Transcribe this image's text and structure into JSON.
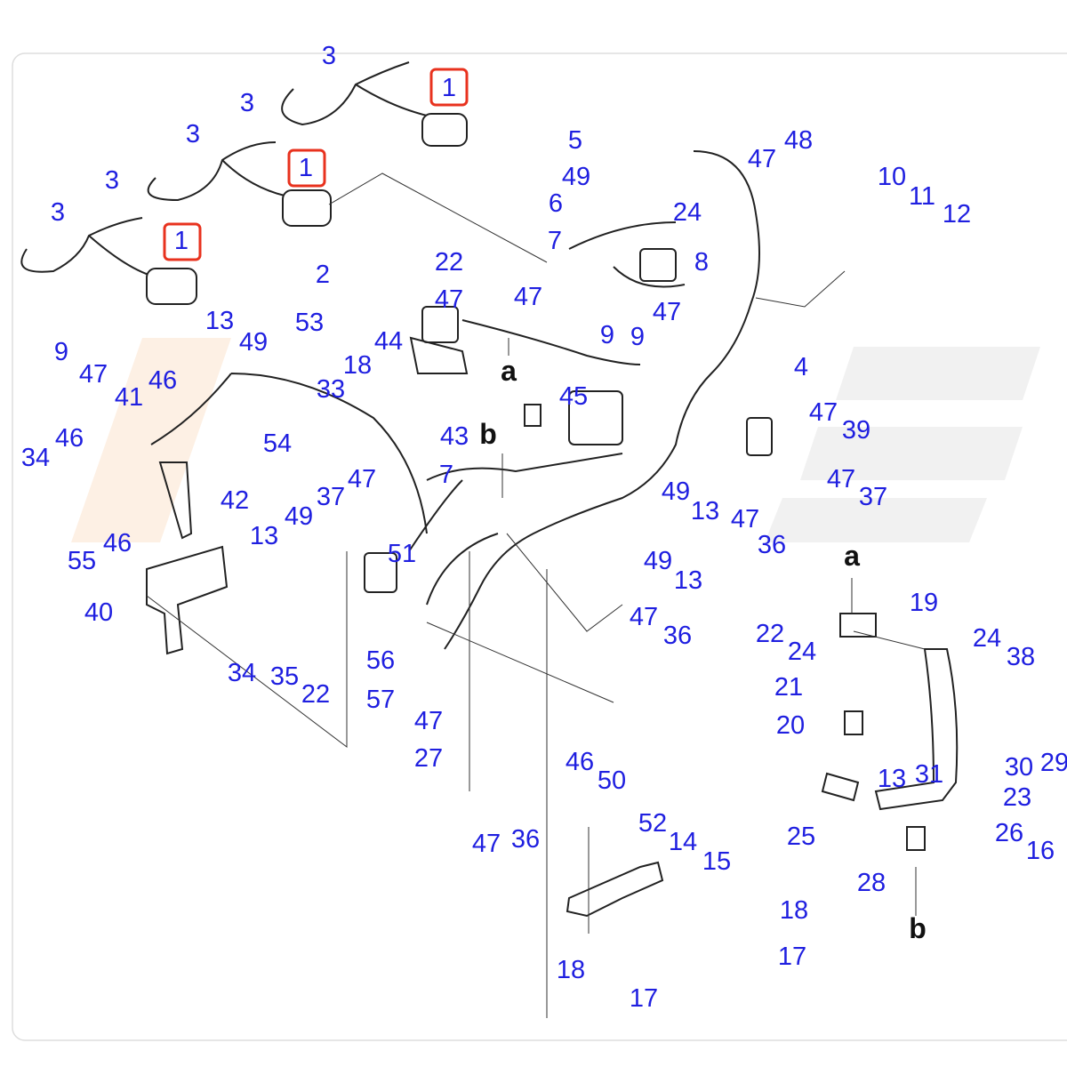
{
  "labels": [
    "3",
    "3",
    "1",
    "3",
    "3",
    "1",
    "3",
    "1",
    "2",
    "5",
    "48",
    "47",
    "49",
    "10",
    "11",
    "6",
    "24",
    "12",
    "7",
    "8",
    "22",
    "47",
    "47",
    "47",
    "13",
    "53",
    "49",
    "9",
    "9",
    "44",
    "9",
    "47",
    "18",
    "a",
    "4",
    "46",
    "41",
    "33",
    "45",
    "47",
    "39",
    "b",
    "43",
    "46",
    "34",
    "54",
    "7",
    "47",
    "47",
    "49",
    "37",
    "42",
    "37",
    "13",
    "47",
    "49",
    "13",
    "36",
    "55",
    "46",
    "51",
    "a",
    "49",
    "13",
    "19",
    "40",
    "47",
    "22",
    "36",
    "24",
    "38",
    "24",
    "56",
    "34",
    "35",
    "22",
    "21",
    "57",
    "47",
    "20",
    "29",
    "30",
    "27",
    "13",
    "31",
    "46",
    "50",
    "23",
    "52",
    "36",
    "47",
    "25",
    "14",
    "26",
    "16",
    "15",
    "28",
    "18",
    "b",
    "17",
    "18",
    "17"
  ]
}
